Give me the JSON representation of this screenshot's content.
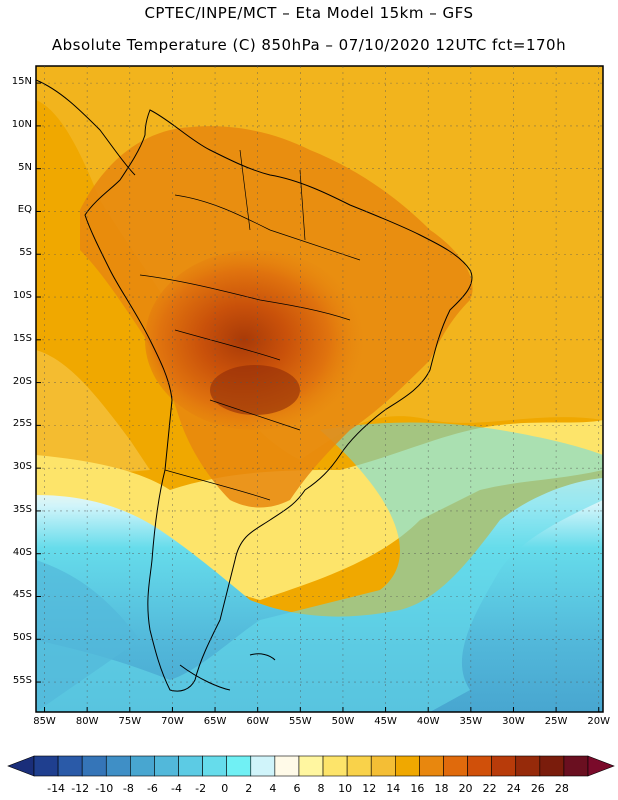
{
  "header": {
    "line1": "CPTEC/INPE/MCT –  Eta Model 15km – GFS",
    "line2": "Absolute Temperature (C) 850hPa – 07/10/2020 12UTC fct=170h"
  },
  "map": {
    "lat_labels": [
      "15N",
      "10N",
      "5N",
      "EQ",
      "5S",
      "10S",
      "15S",
      "20S",
      "25S",
      "30S",
      "35S",
      "40S",
      "45S",
      "50S",
      "55S"
    ],
    "lon_labels": [
      "85W",
      "80W",
      "75W",
      "70W",
      "65W",
      "60W",
      "55W",
      "50W",
      "45W",
      "40W",
      "35W",
      "30W",
      "25W",
      "20W"
    ]
  },
  "colorbar": {
    "labels": [
      "-14",
      "-12",
      "-10",
      "-8",
      "-6",
      "-4",
      "-2",
      "0",
      "2",
      "4",
      "6",
      "8",
      "10",
      "12",
      "14",
      "16",
      "18",
      "20",
      "22",
      "24",
      "26",
      "28"
    ],
    "colors": [
      "#1f3f8f",
      "#2a5aa8",
      "#3575b8",
      "#3f8fc6",
      "#48a6d0",
      "#52b8da",
      "#5ccbe4",
      "#66dceb",
      "#70f0f4",
      "#d0f4fa",
      "#fffae8",
      "#fff6a0",
      "#fde46a",
      "#f9d24a",
      "#f4be35",
      "#f0a800",
      "#e8870e",
      "#e06a0c",
      "#d0500a",
      "#b83b0a",
      "#962a0a",
      "#7a1c0c",
      "#6a0f20"
    ],
    "ends": {
      "left": "#1a2e7a",
      "right": "#7a0a2a"
    }
  }
}
